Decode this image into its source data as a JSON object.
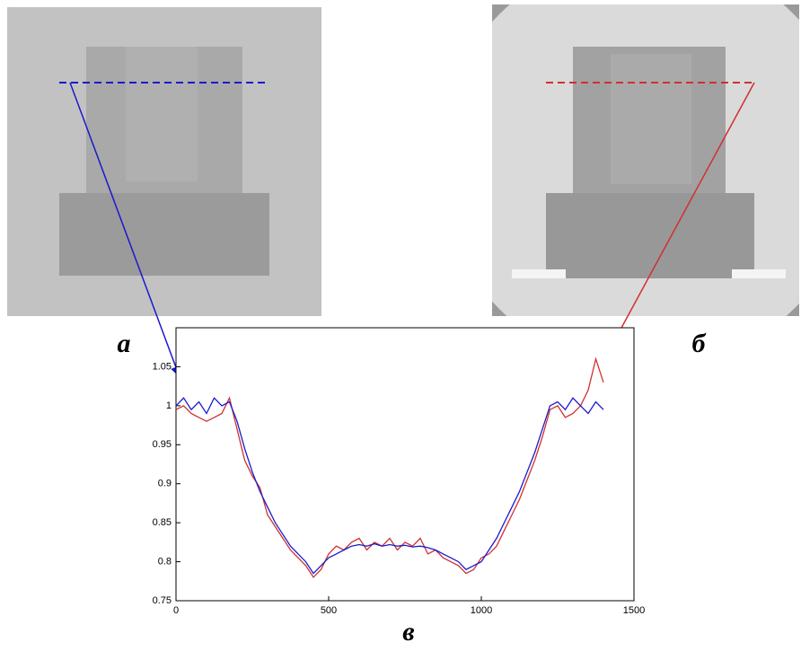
{
  "panel_labels": [
    "а",
    "б",
    "в"
  ],
  "chart_data": {
    "type": "line",
    "x": [
      0,
      25,
      50,
      75,
      100,
      125,
      150,
      175,
      200,
      225,
      250,
      275,
      300,
      325,
      350,
      375,
      400,
      425,
      450,
      475,
      500,
      525,
      550,
      575,
      600,
      625,
      650,
      675,
      700,
      725,
      750,
      775,
      800,
      825,
      850,
      875,
      900,
      925,
      950,
      975,
      1000,
      1025,
      1050,
      1075,
      1100,
      1125,
      1150,
      1175,
      1200,
      1225,
      1250,
      1275,
      1300,
      1325,
      1350,
      1375,
      1400
    ],
    "series": [
      {
        "color": "#d03030",
        "values": [
          0.995,
          1.0,
          0.99,
          0.985,
          0.98,
          0.985,
          0.99,
          1.01,
          0.97,
          0.93,
          0.91,
          0.895,
          0.86,
          0.845,
          0.83,
          0.815,
          0.805,
          0.795,
          0.78,
          0.79,
          0.81,
          0.82,
          0.815,
          0.825,
          0.83,
          0.815,
          0.825,
          0.82,
          0.83,
          0.815,
          0.825,
          0.82,
          0.83,
          0.81,
          0.815,
          0.805,
          0.8,
          0.795,
          0.785,
          0.79,
          0.805,
          0.81,
          0.82,
          0.84,
          0.86,
          0.88,
          0.905,
          0.93,
          0.96,
          0.995,
          1.0,
          0.985,
          0.99,
          1.0,
          1.02,
          1.06,
          1.03
        ]
      },
      {
        "color": "#1a1acc",
        "values": [
          1.0,
          1.01,
          0.995,
          1.005,
          0.99,
          1.01,
          1.0,
          1.005,
          0.98,
          0.945,
          0.915,
          0.89,
          0.87,
          0.85,
          0.835,
          0.82,
          0.81,
          0.8,
          0.785,
          0.795,
          0.805,
          0.81,
          0.815,
          0.82,
          0.822,
          0.82,
          0.823,
          0.82,
          0.822,
          0.82,
          0.821,
          0.819,
          0.82,
          0.818,
          0.815,
          0.81,
          0.805,
          0.8,
          0.79,
          0.795,
          0.8,
          0.815,
          0.83,
          0.85,
          0.87,
          0.89,
          0.915,
          0.94,
          0.97,
          1.0,
          1.005,
          0.995,
          1.01,
          1.0,
          0.99,
          1.005,
          0.995
        ]
      }
    ],
    "xlim": [
      0,
      1500
    ],
    "ylim": [
      0.75,
      1.1
    ],
    "xticks": [
      0,
      500,
      1000,
      1500
    ],
    "yticks": [
      0.75,
      0.8,
      0.85,
      0.9,
      0.95,
      1,
      1.05
    ]
  }
}
